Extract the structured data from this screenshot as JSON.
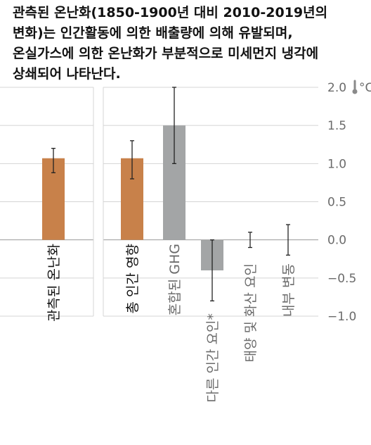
{
  "title_lines": [
    "관측된 온난화(1850-1900년 대비 2010-2019년의",
    "변화)는 인간활동에 의한 배출량에 의해 유발되며,",
    "온실가스에 의한 온난화가 부분적으로 미세먼지 냉각에",
    "상쇄되어 나타난다."
  ],
  "chart_data": {
    "type": "bar",
    "categories": [
      "관측된 온난화",
      "총 인간 영향",
      "혼합된 GHG",
      "다른 인간 요인*",
      "태양 및 화산 요인",
      "내부 변동"
    ],
    "values": [
      1.07,
      1.07,
      1.5,
      -0.4,
      null,
      null
    ],
    "error_low": [
      0.88,
      0.8,
      1.0,
      -0.8,
      -0.1,
      -0.2
    ],
    "error_high": [
      1.2,
      1.3,
      2.0,
      0.0,
      0.1,
      0.2
    ],
    "bar_colors": [
      "#c8814a",
      "#c8814a",
      "#a3a5a6",
      "#a3a5a6",
      "#a3a5a6",
      "#a3a5a6"
    ],
    "label_colors": [
      "#111111",
      "#111111",
      "#6b6b6b",
      "#6b6b6b",
      "#6b6b6b",
      "#6b6b6b"
    ],
    "ylim": [
      -1.0,
      2.0
    ],
    "yticks": [
      2.0,
      1.5,
      1.0,
      0.5,
      0.0,
      -0.5,
      -1.0
    ],
    "ytick_labels": [
      "2.0",
      "1.5",
      "1.0",
      "0.5",
      "0.0",
      "−0.5",
      "−1.0"
    ],
    "y_unit": "°C",
    "grid": true,
    "panel_break_after": 0
  },
  "colors": {
    "grid": "#d4d4d4",
    "zero_line": "#9a9a9a",
    "error_bar": "#222222",
    "thermometer": "#8a8a8a"
  }
}
